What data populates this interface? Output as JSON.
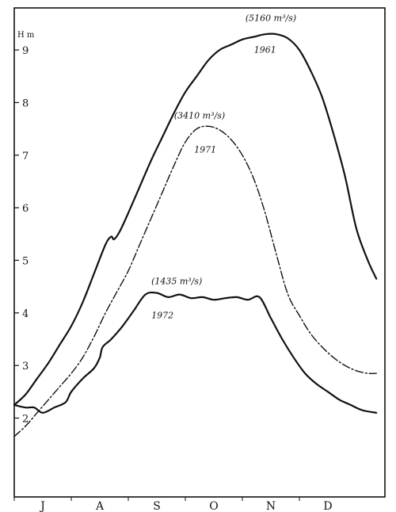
{
  "chart_data": {
    "type": "line",
    "title": "",
    "xlabel": "",
    "ylabel": "H m",
    "x_categories": [
      "J",
      "A",
      "S",
      "O",
      "N",
      "D"
    ],
    "xlim": [
      0,
      6.5
    ],
    "ylim": [
      0.5,
      9.8
    ],
    "yticks": [
      2,
      3,
      4,
      5,
      6,
      7,
      8,
      9
    ],
    "grid": false,
    "legend": "none",
    "series": [
      {
        "name": "1961",
        "style": "solid",
        "annotation": "(5160 m³/s)",
        "x": [
          0.0,
          0.2,
          0.4,
          0.6,
          0.8,
          1.0,
          1.2,
          1.4,
          1.6,
          1.7,
          1.75,
          1.85,
          2.0,
          2.2,
          2.4,
          2.6,
          2.8,
          3.0,
          3.2,
          3.4,
          3.6,
          3.8,
          4.0,
          4.2,
          4.4,
          4.6,
          4.8,
          5.0,
          5.2,
          5.4,
          5.6,
          5.8,
          6.0,
          6.2,
          6.35
        ],
        "y": [
          2.25,
          2.45,
          2.75,
          3.05,
          3.4,
          3.75,
          4.2,
          4.75,
          5.3,
          5.45,
          5.4,
          5.55,
          5.9,
          6.4,
          6.9,
          7.35,
          7.8,
          8.2,
          8.5,
          8.8,
          9.0,
          9.1,
          9.2,
          9.25,
          9.3,
          9.3,
          9.22,
          9.0,
          8.6,
          8.1,
          7.4,
          6.6,
          5.6,
          5.0,
          4.65
        ]
      },
      {
        "name": "1971",
        "style": "dashdot",
        "annotation": "(3410 m³/s)",
        "x": [
          0.0,
          0.2,
          0.4,
          0.6,
          0.8,
          1.0,
          1.2,
          1.4,
          1.6,
          1.8,
          2.0,
          2.2,
          2.4,
          2.6,
          2.8,
          3.0,
          3.2,
          3.4,
          3.6,
          3.8,
          4.0,
          4.2,
          4.4,
          4.6,
          4.8,
          5.0,
          5.2,
          5.4,
          5.6,
          5.8,
          6.0,
          6.2,
          6.35
        ],
        "y": [
          1.65,
          1.85,
          2.1,
          2.35,
          2.6,
          2.85,
          3.15,
          3.55,
          4.0,
          4.4,
          4.8,
          5.3,
          5.8,
          6.3,
          6.8,
          7.25,
          7.5,
          7.55,
          7.48,
          7.3,
          7.0,
          6.55,
          5.9,
          5.1,
          4.35,
          3.95,
          3.6,
          3.35,
          3.15,
          3.0,
          2.9,
          2.85,
          2.85
        ]
      },
      {
        "name": "1972",
        "style": "solid",
        "annotation": "(1435 m³/s)",
        "x": [
          0.0,
          0.2,
          0.35,
          0.5,
          0.7,
          0.9,
          1.0,
          1.2,
          1.4,
          1.5,
          1.55,
          1.7,
          1.9,
          2.1,
          2.3,
          2.5,
          2.7,
          2.9,
          3.1,
          3.3,
          3.5,
          3.7,
          3.9,
          4.1,
          4.3,
          4.5,
          4.7,
          4.9,
          5.1,
          5.3,
          5.5,
          5.7,
          5.9,
          6.1,
          6.35
        ],
        "y": [
          2.25,
          2.2,
          2.2,
          2.1,
          2.2,
          2.3,
          2.5,
          2.75,
          2.95,
          3.15,
          3.35,
          3.5,
          3.75,
          4.05,
          4.35,
          4.38,
          4.3,
          4.35,
          4.28,
          4.3,
          4.25,
          4.28,
          4.3,
          4.25,
          4.3,
          3.9,
          3.5,
          3.15,
          2.85,
          2.65,
          2.5,
          2.35,
          2.25,
          2.15,
          2.1
        ]
      }
    ],
    "annotations": [
      {
        "text": "(5160 m³/s)",
        "x": 4.5,
        "y": 9.55
      },
      {
        "text": "1961",
        "x": 4.4,
        "y": 8.95
      },
      {
        "text": "(3410 m³/s)",
        "x": 3.25,
        "y": 7.7
      },
      {
        "text": "1971",
        "x": 3.35,
        "y": 7.05
      },
      {
        "text": "(1435 m³/s)",
        "x": 2.85,
        "y": 4.55
      },
      {
        "text": "1972",
        "x": 2.6,
        "y": 3.9
      }
    ]
  }
}
